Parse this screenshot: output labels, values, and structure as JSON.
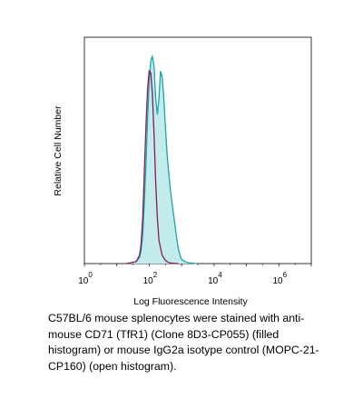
{
  "chart_data": {
    "type": "area",
    "xlabel": "Log Fluorescence Intensity",
    "ylabel": "Relative Cell Number",
    "x_scale": "log",
    "xlim": [
      1,
      10000000
    ],
    "ylim": [
      0,
      100
    ],
    "x_ticks": [
      {
        "base": "10",
        "exp": "0",
        "value": 1
      },
      {
        "base": "10",
        "exp": "2",
        "value": 100
      },
      {
        "base": "10",
        "exp": "4",
        "value": 10000
      },
      {
        "base": "10",
        "exp": "6",
        "value": 1000000
      }
    ],
    "grid": false,
    "legend": "none",
    "series": [
      {
        "style": "filled",
        "color": "#1aa5a9",
        "fill": "#c2ebec",
        "x": [
          20,
          40,
          50,
          56,
          63,
          71,
          80,
          89,
          100,
          112,
          125,
          141,
          158,
          178,
          200,
          224,
          251,
          282,
          316,
          355,
          398,
          447,
          501,
          562,
          631,
          708,
          794,
          891,
          1000,
          1259,
          1585,
          2000,
          3000
        ],
        "y": [
          0,
          1,
          3,
          6,
          14,
          30,
          50,
          70,
          88,
          98,
          100,
          95,
          80,
          72,
          80,
          93,
          90,
          80,
          66,
          53,
          44,
          36,
          30,
          24,
          18,
          12,
          7,
          4,
          2,
          1,
          0.5,
          0.2,
          0
        ]
      },
      {
        "style": "open",
        "color": "#8a1a5c",
        "x": [
          20,
          40,
          50,
          56,
          63,
          71,
          80,
          89,
          100,
          112,
          125,
          141,
          158,
          178,
          200,
          251,
          316,
          398,
          501,
          794
        ],
        "y": [
          0,
          1,
          4,
          9,
          22,
          45,
          68,
          84,
          93,
          92,
          82,
          62,
          40,
          22,
          11,
          4,
          1.5,
          0.5,
          0.2,
          0
        ]
      }
    ]
  },
  "caption": "C57BL/6 mouse splenocytes were stained with anti-mouse CD71 (TfR1) (Clone 8D3-CP055) (filled histogram) or mouse IgG2a isotype control (MOPC-21-CP160) (open histogram)."
}
